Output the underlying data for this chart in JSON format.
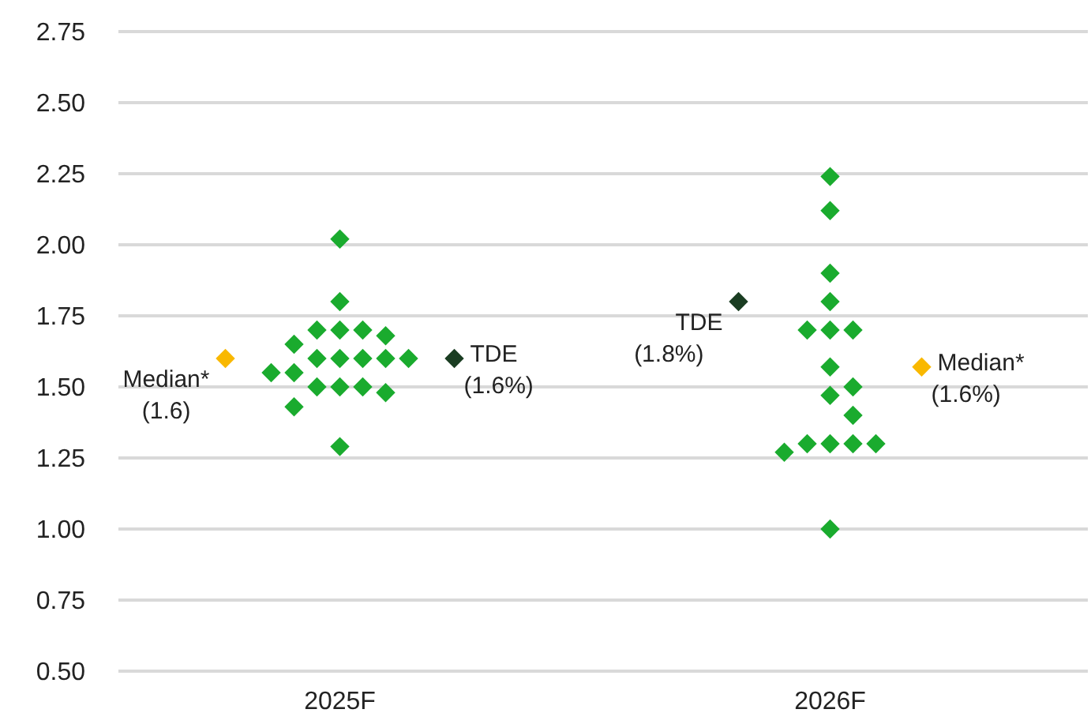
{
  "chart_data": {
    "type": "scatter",
    "marker": "diamond",
    "grid": "y",
    "categories": [
      "2025F",
      "2026F"
    ],
    "ylim": [
      0.5,
      2.75
    ],
    "yticks": [
      {
        "value": 0.5,
        "label": "0.50"
      },
      {
        "value": 0.75,
        "label": "0.75"
      },
      {
        "value": 1,
        "label": "1.00"
      },
      {
        "value": 1.25,
        "label": "1.25"
      },
      {
        "value": 1.5,
        "label": "1.50"
      },
      {
        "value": 1.75,
        "label": "1.75"
      },
      {
        "value": 2,
        "label": "2.00"
      },
      {
        "value": 2.25,
        "label": "2.25"
      },
      {
        "value": 2.5,
        "label": "2.50"
      },
      {
        "value": 2.75,
        "label": "2.75"
      }
    ],
    "series": [
      {
        "color": "#1aab2e",
        "x": [
          "2025F",
          "2025F",
          "2025F",
          "2025F",
          "2025F",
          "2025F",
          "2025F",
          "2025F",
          "2025F",
          "2025F",
          "2025F",
          "2025F",
          "2025F",
          "2025F",
          "2025F",
          "2025F",
          "2025F",
          "2025F",
          "2025F",
          "2025F",
          "2026F",
          "2026F",
          "2026F",
          "2026F",
          "2026F",
          "2026F",
          "2026F",
          "2026F",
          "2026F",
          "2026F",
          "2026F",
          "2026F",
          "2026F",
          "2026F",
          "2026F",
          "2026F",
          "2026F"
        ],
        "values": [
          2.02,
          1.8,
          1.7,
          1.7,
          1.68,
          1.7,
          1.65,
          1.6,
          1.6,
          1.6,
          1.6,
          1.6,
          1.55,
          1.55,
          1.5,
          1.48,
          1.5,
          1.5,
          1.43,
          1.29,
          2.24,
          2.12,
          1.9,
          1.8,
          1.7,
          1.7,
          1.7,
          1.57,
          1.5,
          1.47,
          1.4,
          1.3,
          1.3,
          1.3,
          1.27,
          1.3,
          1.0
        ]
      },
      {
        "color": "#f9b800",
        "x": [
          "2025F",
          "2026F"
        ],
        "values": [
          1.6,
          1.57
        ]
      },
      {
        "color": "#1a3d22",
        "x": [
          "2025F",
          "2026F"
        ],
        "values": [
          1.6,
          1.8
        ]
      }
    ],
    "annotations": [
      "Median*\n(1.6)",
      "Median*\n(1.6%)",
      "TDE\n(1.6%)",
      "TDE\n(1.8%)"
    ]
  }
}
